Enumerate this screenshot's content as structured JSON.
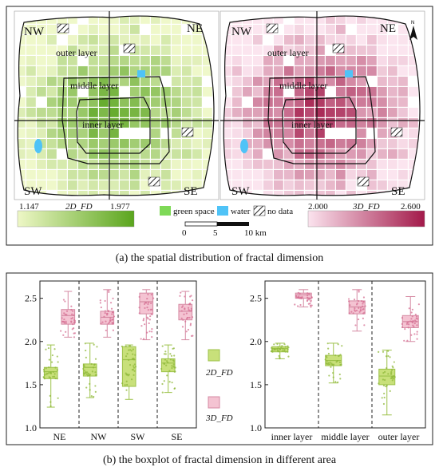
{
  "colors": {
    "fd2_light": "#eef7c6",
    "fd2_dark": "#5aa51d",
    "fd2_box": "#c8e07a",
    "fd2_edge": "#9dc24a",
    "fd2_dot": "#8fb83a",
    "fd3_light": "#fbe3ee",
    "fd3_dark": "#a31a4a",
    "fd3_box": "#f4c3d2",
    "fd3_edge": "#d58aa3",
    "fd3_dot": "#d56f93",
    "green_space": "#7ed957",
    "water": "#4fc3f7"
  },
  "panel_a": {
    "caption": "(a) the spatial distribution of fractal dimension",
    "quadrants": [
      "NW",
      "NE",
      "SW",
      "SE"
    ],
    "layers": {
      "outer": "outer layer",
      "middle": "middle layer",
      "inner": "inner layer"
    },
    "north_arrow": "N",
    "legend_2d": {
      "min": "1.147",
      "label": "2D_FD",
      "max": "1.977"
    },
    "legend_3d": {
      "min": "2.000",
      "label": "3D_FD",
      "max": "2.600"
    },
    "legend_items": {
      "green": "green space",
      "water": "water",
      "nodata": "no data"
    },
    "scale": {
      "t0": "0",
      "t1": "5",
      "t2": "10 km"
    }
  },
  "panel_b": {
    "caption": "(b) the boxplot  of fractal dimension in different area",
    "legend": {
      "fd2": "2D_FD",
      "fd3": "3D_FD"
    }
  },
  "chart_data": [
    {
      "type": "box",
      "xlabel": "",
      "ylabel": "",
      "ylim": [
        1.0,
        2.7
      ],
      "yticks": [
        "1.0",
        "1.5",
        "2.0",
        "2.5"
      ],
      "categories": [
        "NE",
        "NW",
        "SW",
        "SE"
      ],
      "series": [
        {
          "name": "2D_FD",
          "color": "#c8e07a",
          "boxes": [
            {
              "min": 1.24,
              "q1": 1.57,
              "median": 1.65,
              "q3": 1.7,
              "max": 1.96
            },
            {
              "min": 1.35,
              "q1": 1.6,
              "median": 1.7,
              "q3": 1.74,
              "max": 1.98
            },
            {
              "min": 1.33,
              "q1": 1.48,
              "median": 1.79,
              "q3": 1.94,
              "max": 1.96
            },
            {
              "min": 1.41,
              "q1": 1.65,
              "median": 1.75,
              "q3": 1.8,
              "max": 1.96
            }
          ]
        },
        {
          "name": "3D_FD",
          "color": "#f4c3d2",
          "boxes": [
            {
              "min": 2.05,
              "q1": 2.2,
              "median": 2.3,
              "q3": 2.37,
              "max": 2.58
            },
            {
              "min": 2.05,
              "q1": 2.2,
              "median": 2.28,
              "q3": 2.35,
              "max": 2.6
            },
            {
              "min": 2.02,
              "q1": 2.32,
              "median": 2.46,
              "q3": 2.56,
              "max": 2.6
            },
            {
              "min": 2.02,
              "q1": 2.25,
              "median": 2.35,
              "q3": 2.43,
              "max": 2.58
            }
          ]
        }
      ]
    },
    {
      "type": "box",
      "xlabel": "",
      "ylabel": "",
      "ylim": [
        1.0,
        2.7
      ],
      "yticks": [
        "1.0",
        "1.5",
        "2.0",
        "2.5"
      ],
      "categories": [
        "inner layer",
        "middle layer",
        "outer layer"
      ],
      "series": [
        {
          "name": "2D_FD",
          "color": "#c8e07a",
          "boxes": [
            {
              "min": 1.8,
              "q1": 1.88,
              "median": 1.92,
              "q3": 1.94,
              "max": 1.98
            },
            {
              "min": 1.52,
              "q1": 1.72,
              "median": 1.78,
              "q3": 1.84,
              "max": 1.98
            },
            {
              "min": 1.15,
              "q1": 1.5,
              "median": 1.6,
              "q3": 1.68,
              "max": 1.9
            }
          ]
        },
        {
          "name": "3D_FD",
          "color": "#f4c3d2",
          "boxes": [
            {
              "min": 2.4,
              "q1": 2.5,
              "median": 2.54,
              "q3": 2.56,
              "max": 2.6
            },
            {
              "min": 2.12,
              "q1": 2.32,
              "median": 2.4,
              "q3": 2.47,
              "max": 2.6
            },
            {
              "min": 2.0,
              "q1": 2.16,
              "median": 2.23,
              "q3": 2.3,
              "max": 2.52
            }
          ]
        }
      ]
    }
  ]
}
